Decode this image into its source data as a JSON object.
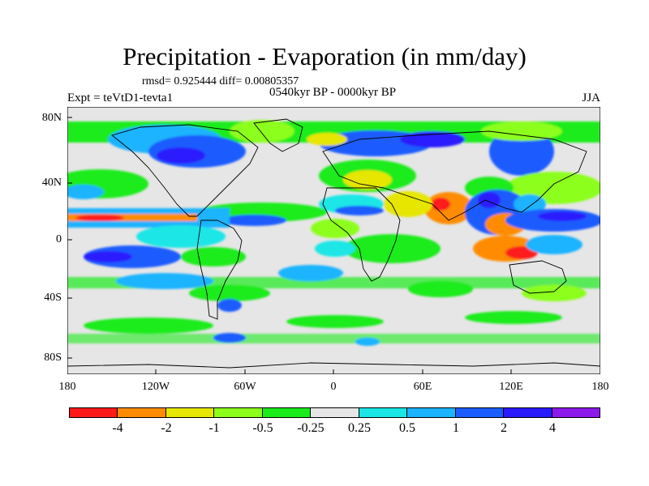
{
  "header": {
    "title": "Precipitation - Evaporation (in mm/day)",
    "stats": "rmsd= 0.925444  diff= 0.00805357",
    "period": "0540kyr BP - 0000kyr BP",
    "expt": "Expt = teVtD1-tevta1",
    "season": "JJA"
  },
  "axes": {
    "lat_ticks": [
      "80N",
      "40N",
      "0",
      "40S",
      "80S"
    ],
    "lon_ticks": [
      "180",
      "120W",
      "60W",
      "0",
      "60E",
      "120E",
      "180"
    ]
  },
  "colorbar": {
    "labels": [
      "-4",
      "-2",
      "-1",
      "-0.5",
      "-0.25",
      "0.25",
      "0.5",
      "1",
      "2",
      "4"
    ],
    "colors": [
      "#ff1a1a",
      "#ff8c00",
      "#e6e600",
      "#8cff1a",
      "#1aeb1a",
      "#e6e6e6",
      "#1ae6e6",
      "#1ab3ff",
      "#1a5cff",
      "#2a1aff",
      "#8c1aeb"
    ]
  }
}
